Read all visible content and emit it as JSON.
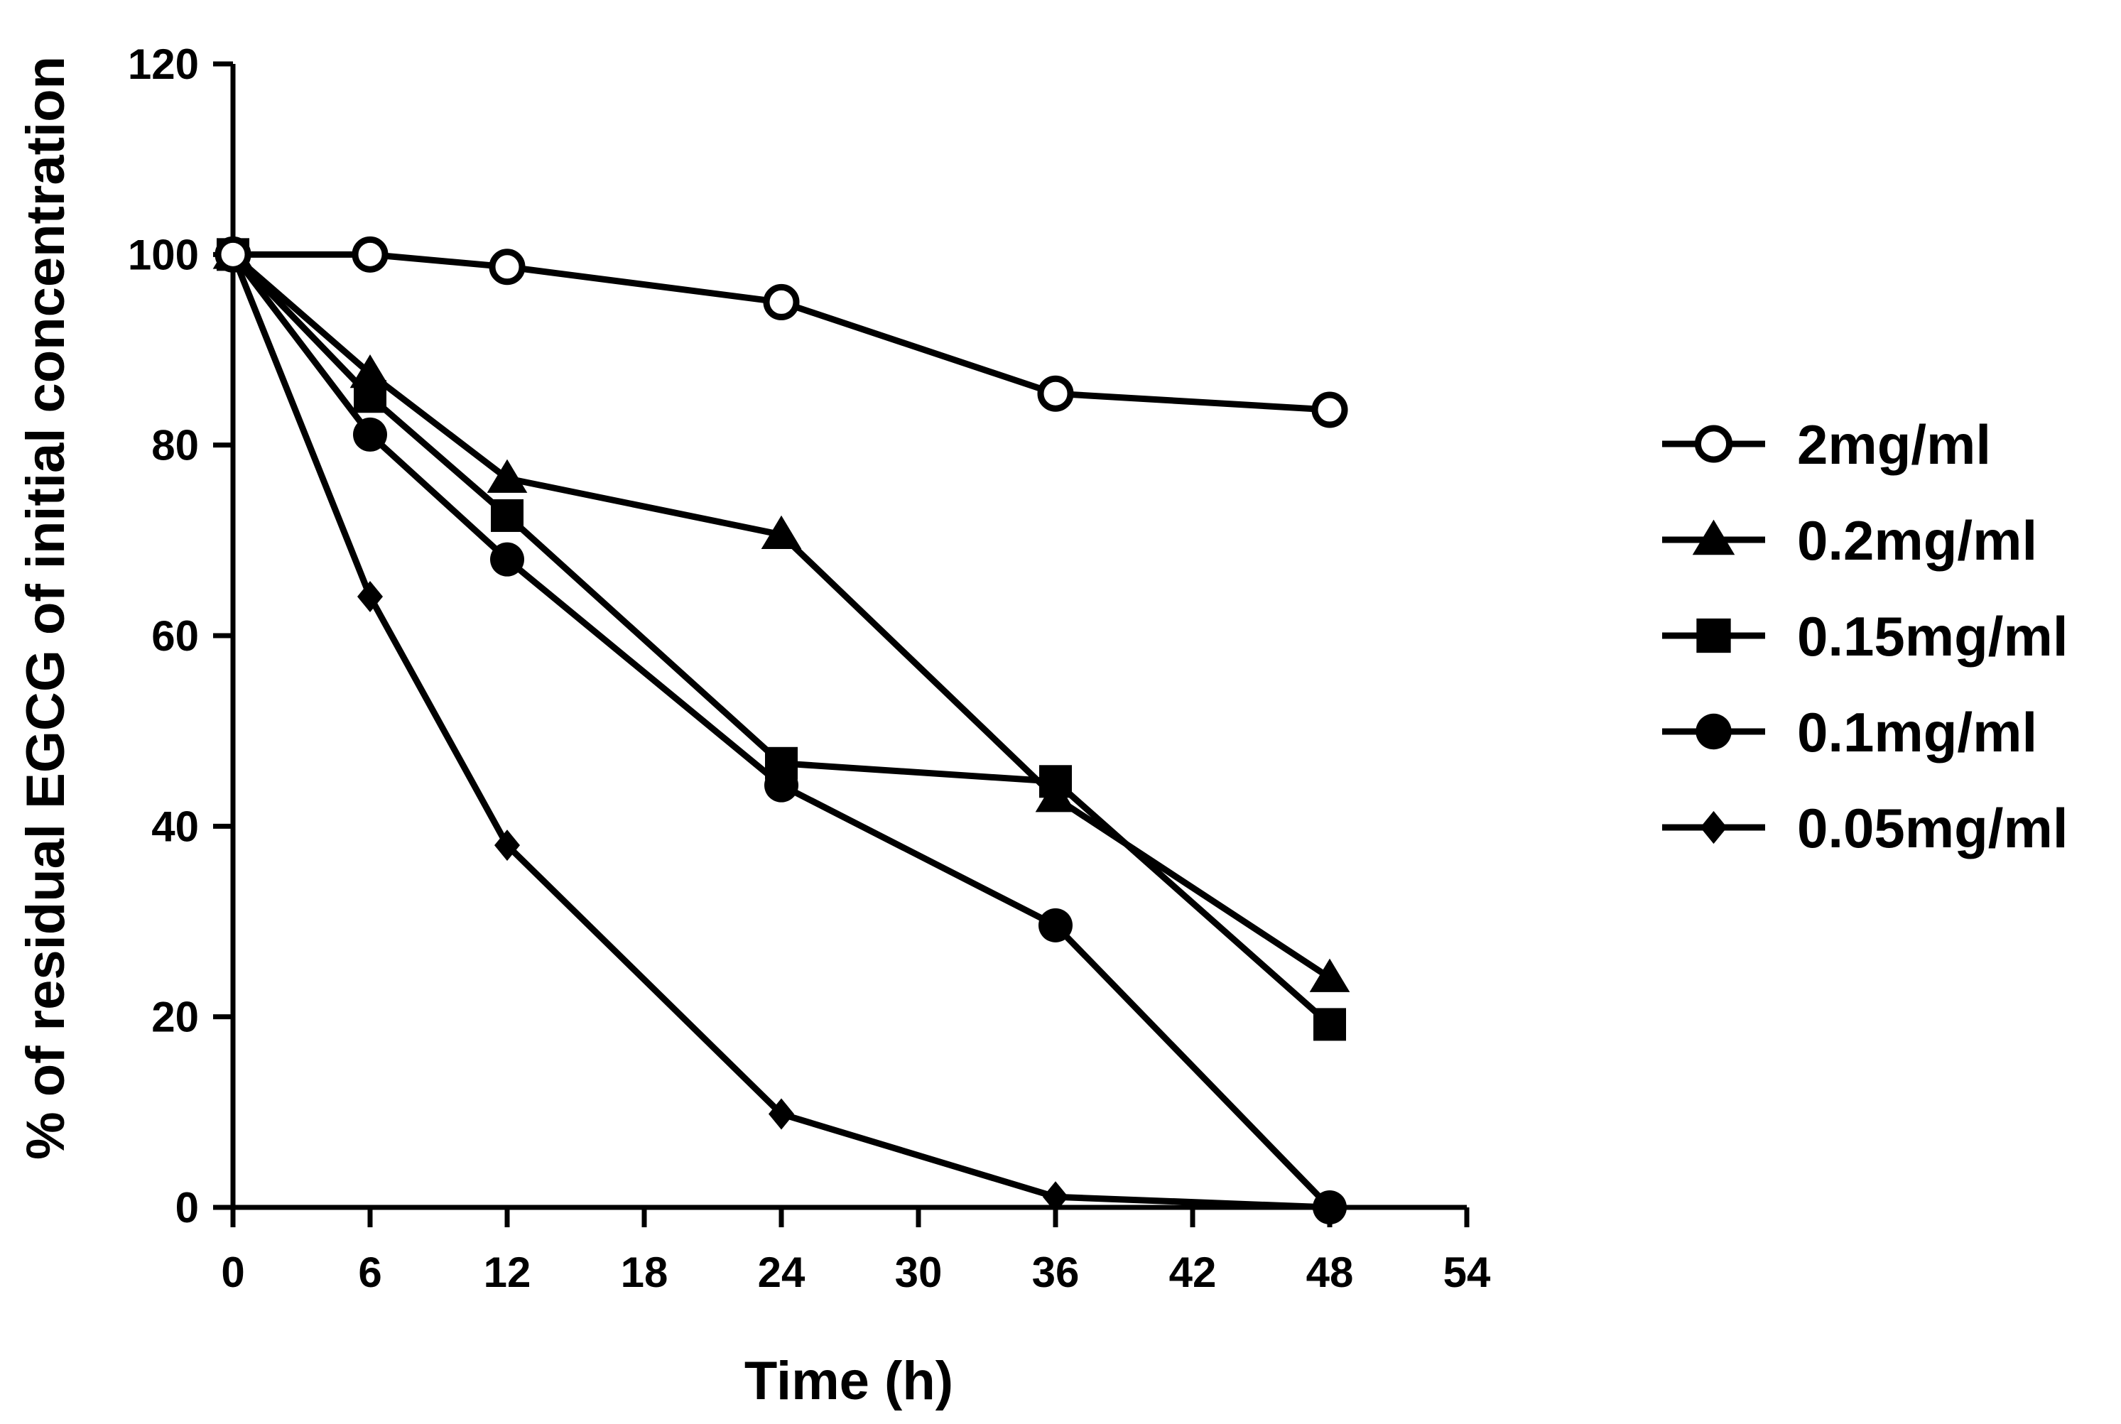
{
  "chart_data": {
    "type": "line",
    "title": "",
    "xlabel": "Time (h)",
    "ylabel": "% of residual EGCG of initial concentration",
    "xlim": [
      0,
      54
    ],
    "ylim": [
      0,
      120
    ],
    "xticks": [
      "0",
      "6",
      "12",
      "18",
      "24",
      "30",
      "36",
      "42",
      "48",
      "54"
    ],
    "yticks": [
      "0",
      "20",
      "40",
      "60",
      "80",
      "100",
      "120"
    ],
    "grid": false,
    "legend_position": "right",
    "series": [
      {
        "name": "2mg/ml",
        "marker": "open-circle",
        "x": [
          0,
          6,
          12,
          24,
          36,
          48
        ],
        "y": [
          100,
          100,
          98.7,
          95,
          85.4,
          83.7
        ]
      },
      {
        "name": "0.2mg/ml",
        "marker": "triangle",
        "x": [
          0,
          6,
          12,
          24,
          36,
          48
        ],
        "y": [
          100,
          87.5,
          76.5,
          70.6,
          43,
          24.1
        ]
      },
      {
        "name": "0.15mg/ml",
        "marker": "square",
        "x": [
          0,
          6,
          12,
          24,
          36,
          48
        ],
        "y": [
          100,
          85.1,
          72.6,
          46.6,
          44.7,
          19.2
        ]
      },
      {
        "name": "0.1mg/ml",
        "marker": "circle",
        "x": [
          0,
          6,
          12,
          24,
          36,
          48
        ],
        "y": [
          100,
          81.1,
          68,
          44.3,
          29.6,
          0
        ]
      },
      {
        "name": "0.05mg/ml",
        "marker": "diamond",
        "x": [
          0,
          6,
          12,
          24,
          36,
          48
        ],
        "y": [
          100,
          64.1,
          38,
          9.8,
          1.1,
          0
        ]
      }
    ]
  }
}
